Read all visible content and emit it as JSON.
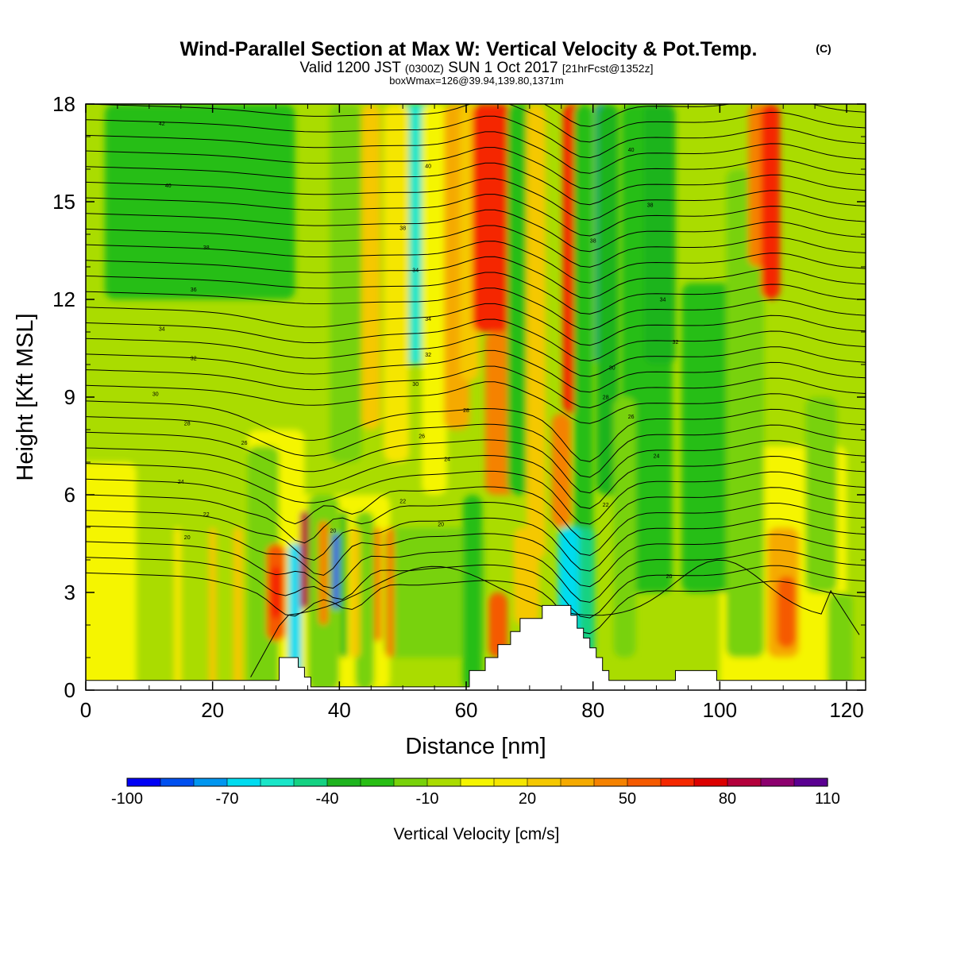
{
  "title": "Wind-Parallel Section at Max W: Vertical Velocity & Pot.Temp.",
  "title_mark": "(C)",
  "subtitle_parts": [
    "Valid 1200 JST ",
    "(0300Z)",
    " SUN 1 Oct 2017 ",
    "[21hrFcst@1352z]"
  ],
  "subtitle2": "boxWmax=126@39.94,139.80,1371m",
  "colorbar": {
    "label": "Vertical Velocity [cm/s]",
    "tick_labels": [
      "-100",
      "-70",
      "-40",
      "-10",
      "20",
      "50",
      "80",
      "110"
    ],
    "levels": [
      -100,
      -90,
      -80,
      -70,
      -60,
      -50,
      -40,
      -30,
      -20,
      -10,
      0,
      10,
      20,
      30,
      40,
      50,
      60,
      70,
      80,
      90,
      100,
      110
    ],
    "colors": [
      "#0000f5",
      "#0050f0",
      "#0096f0",
      "#00dcf0",
      "#19e6c8",
      "#14d282",
      "#1eb41e",
      "#28be14",
      "#78d20a",
      "#aadc00",
      "#f5f500",
      "#f5e600",
      "#f5c800",
      "#f5aa00",
      "#f58200",
      "#f55a00",
      "#f52800",
      "#dc0000",
      "#b4003c",
      "#8c006e",
      "#5a0091"
    ]
  },
  "chart_data": {
    "type": "contour",
    "title": "Wind-Parallel Section at Max W: Vertical Velocity & Pot.Temp.",
    "xlabel": "Distance [nm]",
    "ylabel": "Height [Kft MSL]",
    "xlim": [
      0,
      123
    ],
    "ylim": [
      0,
      18
    ],
    "x_ticks": [
      0,
      20,
      40,
      60,
      80,
      100,
      120
    ],
    "y_ticks": [
      0,
      3,
      6,
      9,
      12,
      15,
      18
    ],
    "terrain_blocks": [
      {
        "x": [
          0,
          30.5
        ],
        "top": 0.3
      },
      {
        "x": [
          30.5,
          33.5
        ],
        "top": 1.0
      },
      {
        "x": [
          33.5,
          34.5
        ],
        "top": 0.7
      },
      {
        "x": [
          34.5,
          35.5
        ],
        "top": 0.4
      },
      {
        "x": [
          35.5,
          60.5
        ],
        "top": 0.1
      },
      {
        "x": [
          60.5,
          63.0
        ],
        "top": 0.6
      },
      {
        "x": [
          63.0,
          65.0
        ],
        "top": 1.0
      },
      {
        "x": [
          65.0,
          67.0
        ],
        "top": 1.4
      },
      {
        "x": [
          67.0,
          68.5
        ],
        "top": 1.8
      },
      {
        "x": [
          68.5,
          72.0
        ],
        "top": 2.2
      },
      {
        "x": [
          72.0,
          76.5
        ],
        "top": 2.6
      },
      {
        "x": [
          76.5,
          77.5
        ],
        "top": 2.3
      },
      {
        "x": [
          77.5,
          78.5
        ],
        "top": 1.9
      },
      {
        "x": [
          78.5,
          79.5
        ],
        "top": 1.6
      },
      {
        "x": [
          79.5,
          80.5
        ],
        "top": 1.3
      },
      {
        "x": [
          80.5,
          81.5
        ],
        "top": 1.0
      },
      {
        "x": [
          81.5,
          82.5
        ],
        "top": 0.6
      },
      {
        "x": [
          82.5,
          93.0
        ],
        "top": 0.3
      },
      {
        "x": [
          93.0,
          99.5
        ],
        "top": 0.6
      },
      {
        "x": [
          99.5,
          123
        ],
        "top": 0.3
      }
    ],
    "theta_contours": [
      20,
      22,
      24,
      26,
      28,
      30,
      32,
      34,
      36,
      38,
      40,
      42
    ],
    "theta_labels": [
      {
        "x": 16,
        "y": 4.7,
        "label": "20"
      },
      {
        "x": 19,
        "y": 5.4,
        "label": "22"
      },
      {
        "x": 15,
        "y": 6.4,
        "label": "24"
      },
      {
        "x": 25,
        "y": 7.6,
        "label": "26"
      },
      {
        "x": 16,
        "y": 8.2,
        "label": "28"
      },
      {
        "x": 11,
        "y": 9.1,
        "label": "30"
      },
      {
        "x": 17,
        "y": 10.2,
        "label": "32"
      },
      {
        "x": 12,
        "y": 11.1,
        "label": "34"
      },
      {
        "x": 17,
        "y": 12.3,
        "label": "36"
      },
      {
        "x": 19,
        "y": 13.6,
        "label": "38"
      },
      {
        "x": 13,
        "y": 15.5,
        "label": "40"
      },
      {
        "x": 12,
        "y": 17.4,
        "label": "42"
      },
      {
        "x": 54,
        "y": 16.1,
        "label": "40"
      },
      {
        "x": 50,
        "y": 14.2,
        "label": "38"
      },
      {
        "x": 52,
        "y": 12.9,
        "label": "34"
      },
      {
        "x": 54,
        "y": 11.4,
        "label": "34"
      },
      {
        "x": 54,
        "y": 10.3,
        "label": "32"
      },
      {
        "x": 52,
        "y": 9.4,
        "label": "30"
      },
      {
        "x": 60,
        "y": 8.6,
        "label": "28"
      },
      {
        "x": 53,
        "y": 7.8,
        "label": "26"
      },
      {
        "x": 57,
        "y": 7.1,
        "label": "24"
      },
      {
        "x": 50,
        "y": 5.8,
        "label": "22"
      },
      {
        "x": 56,
        "y": 5.1,
        "label": "20"
      },
      {
        "x": 39,
        "y": 4.9,
        "label": "20"
      },
      {
        "x": 86,
        "y": 16.6,
        "label": "40"
      },
      {
        "x": 80,
        "y": 13.8,
        "label": "38"
      },
      {
        "x": 89,
        "y": 14.9,
        "label": "38"
      },
      {
        "x": 91,
        "y": 12,
        "label": "34"
      },
      {
        "x": 93,
        "y": 10.7,
        "label": "32"
      },
      {
        "x": 83,
        "y": 9.9,
        "label": "30"
      },
      {
        "x": 82,
        "y": 9,
        "label": "28"
      },
      {
        "x": 86,
        "y": 8.4,
        "label": "26"
      },
      {
        "x": 90,
        "y": 7.2,
        "label": "24"
      },
      {
        "x": 82,
        "y": 5.7,
        "label": "22"
      },
      {
        "x": 92,
        "y": 3.5,
        "label": "20"
      }
    ]
  }
}
